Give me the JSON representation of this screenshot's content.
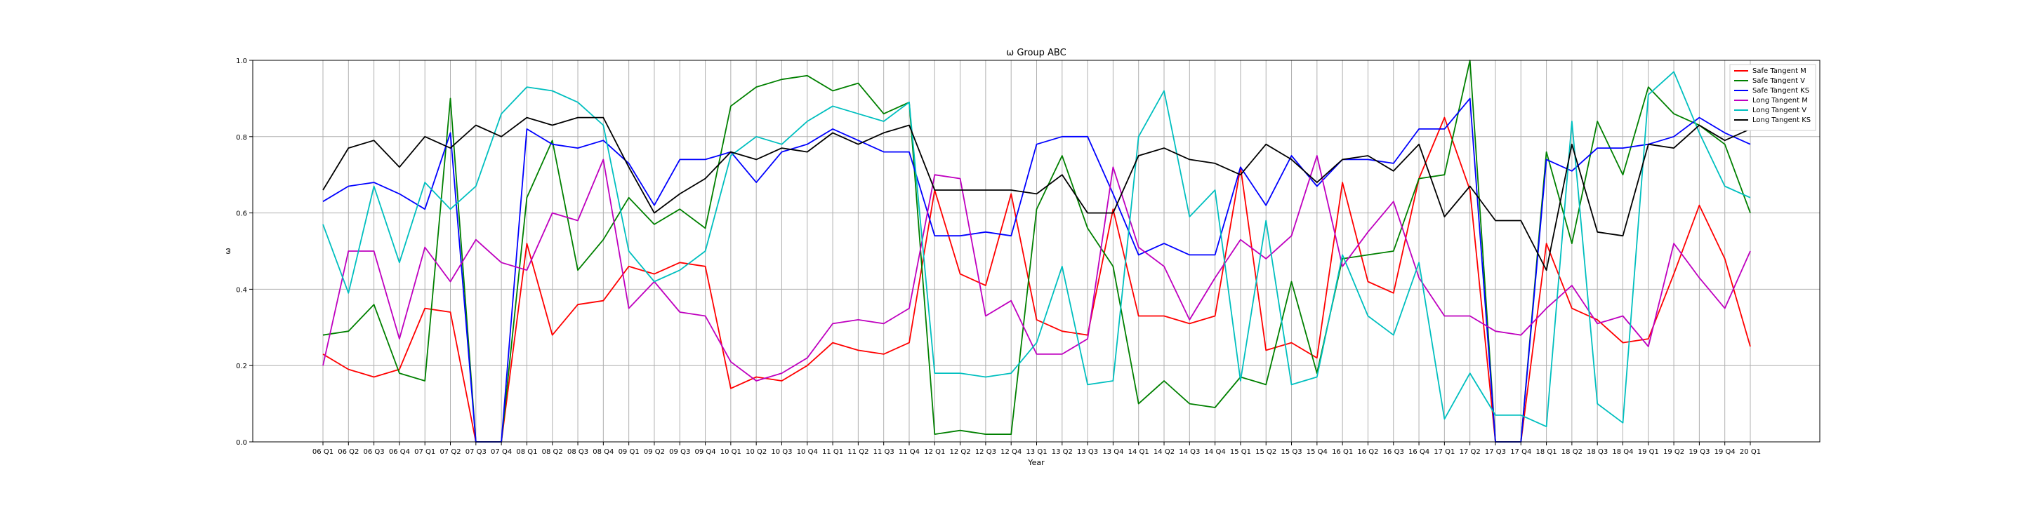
{
  "chart_data": {
    "type": "line",
    "title": "ω Group ABC",
    "xlabel": "Year",
    "ylabel": "ω",
    "ylim": [
      0,
      1.0
    ],
    "yticks": [
      "0.0",
      "0.2",
      "0.4",
      "0.6",
      "0.8",
      "1.0"
    ],
    "grid": true,
    "legend_position": "top-right",
    "categories": [
      "06 Q1",
      "06 Q2",
      "06 Q3",
      "06 Q4",
      "07 Q1",
      "07 Q2",
      "07 Q3",
      "07 Q4",
      "08 Q1",
      "08 Q2",
      "08 Q3",
      "08 Q4",
      "09 Q1",
      "09 Q2",
      "09 Q3",
      "09 Q4",
      "10 Q1",
      "10 Q2",
      "10 Q3",
      "10 Q4",
      "11 Q1",
      "11 Q2",
      "11 Q3",
      "11 Q4",
      "12 Q1",
      "12 Q2",
      "12 Q3",
      "12 Q4",
      "13 Q1",
      "13 Q2",
      "13 Q3",
      "13 Q4",
      "14 Q1",
      "14 Q2",
      "14 Q3",
      "14 Q4",
      "15 Q1",
      "15 Q2",
      "15 Q3",
      "15 Q4",
      "16 Q1",
      "16 Q2",
      "16 Q3",
      "16 Q4",
      "17 Q1",
      "17 Q2",
      "17 Q3",
      "17 Q4",
      "18 Q1",
      "18 Q2",
      "18 Q3",
      "18 Q4",
      "19 Q1",
      "19 Q2",
      "19 Q3",
      "19 Q4",
      "20 Q1"
    ],
    "series": [
      {
        "name": "Safe Tangent M",
        "color": "#ff0000",
        "values": [
          0.23,
          0.19,
          0.17,
          0.19,
          0.35,
          0.34,
          0.0,
          0.0,
          0.52,
          0.28,
          0.36,
          0.37,
          0.46,
          0.44,
          0.47,
          0.46,
          0.14,
          0.17,
          0.16,
          0.2,
          0.26,
          0.24,
          0.23,
          0.26,
          0.66,
          0.44,
          0.41,
          0.65,
          0.32,
          0.29,
          0.28,
          0.61,
          0.33,
          0.33,
          0.31,
          0.33,
          0.72,
          0.24,
          0.26,
          0.22,
          0.68,
          0.42,
          0.39,
          0.69,
          0.85,
          0.66,
          0.0,
          0.0,
          0.52,
          0.35,
          0.32,
          0.26,
          0.27,
          0.44,
          0.62,
          0.48,
          0.25
        ]
      },
      {
        "name": "Safe Tangent V",
        "color": "#008000",
        "values": [
          0.28,
          0.29,
          0.36,
          0.18,
          0.16,
          0.9,
          0.0,
          0.0,
          0.64,
          0.79,
          0.45,
          0.53,
          0.64,
          0.57,
          0.61,
          0.56,
          0.88,
          0.93,
          0.95,
          0.96,
          0.92,
          0.94,
          0.86,
          0.89,
          0.02,
          0.03,
          0.02,
          0.02,
          0.61,
          0.75,
          0.56,
          0.46,
          0.1,
          0.16,
          0.1,
          0.09,
          0.17,
          0.15,
          0.42,
          0.18,
          0.48,
          0.49,
          0.5,
          0.69,
          0.7,
          1.0,
          0.0,
          0.0,
          0.76,
          0.52,
          0.84,
          0.7,
          0.93,
          0.86,
          0.83,
          0.78,
          0.6
        ]
      },
      {
        "name": "Safe Tangent KS",
        "color": "#0000ff",
        "values": [
          0.63,
          0.67,
          0.68,
          0.65,
          0.61,
          0.81,
          0.0,
          0.0,
          0.82,
          0.78,
          0.77,
          0.79,
          0.73,
          0.62,
          0.74,
          0.74,
          0.76,
          0.68,
          0.76,
          0.78,
          0.82,
          0.79,
          0.76,
          0.76,
          0.54,
          0.54,
          0.55,
          0.54,
          0.78,
          0.8,
          0.8,
          0.65,
          0.49,
          0.52,
          0.49,
          0.49,
          0.72,
          0.62,
          0.75,
          0.67,
          0.74,
          0.74,
          0.73,
          0.82,
          0.82,
          0.9,
          0.0,
          0.0,
          0.74,
          0.71,
          0.77,
          0.77,
          0.78,
          0.8,
          0.85,
          0.81,
          0.78
        ]
      },
      {
        "name": "Long Tangent M",
        "color": "#bf00bf",
        "values": [
          0.2,
          0.5,
          0.5,
          0.27,
          0.51,
          0.42,
          0.53,
          0.47,
          0.45,
          0.6,
          0.58,
          0.74,
          0.35,
          0.42,
          0.34,
          0.33,
          0.21,
          0.16,
          0.18,
          0.22,
          0.31,
          0.32,
          0.31,
          0.35,
          0.7,
          0.69,
          0.33,
          0.37,
          0.23,
          0.23,
          0.27,
          0.72,
          0.51,
          0.46,
          0.32,
          0.43,
          0.53,
          0.48,
          0.54,
          0.75,
          0.46,
          0.55,
          0.63,
          0.43,
          0.33,
          0.33,
          0.29,
          0.28,
          0.35,
          0.41,
          0.31,
          0.33,
          0.25,
          0.52,
          0.43,
          0.35,
          0.5
        ]
      },
      {
        "name": "Long Tangent V",
        "color": "#00bfbf",
        "values": [
          0.57,
          0.39,
          0.67,
          0.47,
          0.68,
          0.61,
          0.67,
          0.86,
          0.93,
          0.92,
          0.89,
          0.83,
          0.5,
          0.42,
          0.45,
          0.5,
          0.75,
          0.8,
          0.78,
          0.84,
          0.88,
          0.86,
          0.84,
          0.89,
          0.18,
          0.18,
          0.17,
          0.18,
          0.26,
          0.46,
          0.15,
          0.16,
          0.8,
          0.92,
          0.59,
          0.66,
          0.16,
          0.58,
          0.15,
          0.17,
          0.49,
          0.33,
          0.28,
          0.47,
          0.06,
          0.18,
          0.07,
          0.07,
          0.04,
          0.84,
          0.1,
          0.05,
          0.91,
          0.97,
          0.81,
          0.67,
          0.64
        ]
      },
      {
        "name": "Long Tangent KS",
        "color": "#000000",
        "values": [
          0.66,
          0.77,
          0.79,
          0.72,
          0.8,
          0.77,
          0.83,
          0.8,
          0.85,
          0.83,
          0.85,
          0.85,
          0.72,
          0.6,
          0.65,
          0.69,
          0.76,
          0.74,
          0.77,
          0.76,
          0.81,
          0.78,
          0.81,
          0.83,
          0.66,
          0.66,
          0.66,
          0.66,
          0.65,
          0.7,
          0.6,
          0.6,
          0.75,
          0.77,
          0.74,
          0.73,
          0.7,
          0.78,
          0.74,
          0.68,
          0.74,
          0.75,
          0.71,
          0.78,
          0.59,
          0.67,
          0.58,
          0.58,
          0.45,
          0.78,
          0.55,
          0.54,
          0.78,
          0.77,
          0.83,
          0.79,
          0.82
        ]
      }
    ]
  }
}
